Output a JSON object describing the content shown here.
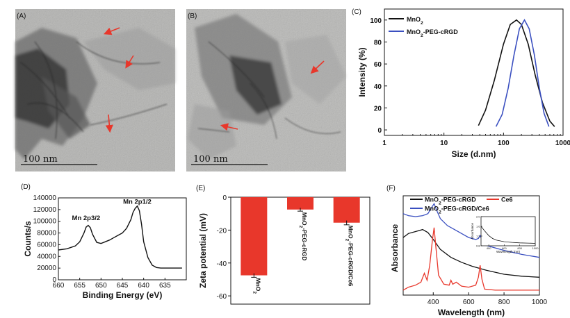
{
  "panels": {
    "A": {
      "label": "(A)",
      "scale_bar": "100 nm"
    },
    "B": {
      "label": "(B)",
      "scale_bar": "100 nm"
    },
    "C": {
      "label": "(C)"
    },
    "D": {
      "label": "(D)"
    },
    "E": {
      "label": "(E)"
    },
    "F": {
      "label": "(F)"
    }
  },
  "colors": {
    "black": "#111111",
    "blue": "#3a4fc0",
    "red": "#e8372b"
  },
  "chart_data": [
    {
      "id": "C",
      "type": "line",
      "xscale": "log",
      "xlabel": "Size (d.nm)",
      "ylabel": "Intensity (%)",
      "xlim": [
        1,
        1000
      ],
      "ylim": [
        -5,
        110
      ],
      "xticks": [
        1,
        10,
        100,
        1000
      ],
      "xticklabels": [
        "1",
        "10",
        "100",
        "1000"
      ],
      "yticks": [
        0,
        20,
        40,
        60,
        80,
        100
      ],
      "yticklabels": [
        "0",
        "20",
        "40",
        "60",
        "80",
        "100"
      ],
      "legend_position": "top-left",
      "series": [
        {
          "name": "MnO2",
          "color": "#111111",
          "x": [
            38,
            50,
            70,
            100,
            130,
            165,
            200,
            260,
            340,
            450,
            600,
            720
          ],
          "y": [
            4,
            18,
            45,
            78,
            96,
            100,
            96,
            78,
            50,
            25,
            8,
            3
          ]
        },
        {
          "name": "MnO2-PEG-cRGD",
          "color": "#3a4fc0",
          "x": [
            75,
            95,
            120,
            150,
            185,
            225,
            270,
            330,
            400,
            480,
            580
          ],
          "y": [
            3,
            14,
            38,
            68,
            92,
            100,
            92,
            68,
            38,
            15,
            3
          ]
        }
      ]
    },
    {
      "id": "D",
      "type": "line",
      "xlabel": "Binding Energy (eV)",
      "ylabel": "Counts/s",
      "xlim": [
        660,
        630
      ],
      "ylim": [
        0,
        140000
      ],
      "xticks": [
        660,
        655,
        650,
        645,
        640,
        635
      ],
      "xticklabels": [
        "660",
        "655",
        "650",
        "645",
        "640",
        "635"
      ],
      "yticks": [
        0,
        20000,
        40000,
        60000,
        80000,
        100000,
        120000,
        140000
      ],
      "yticklabels": [
        "0",
        "20000",
        "40000",
        "60000",
        "80000",
        "100000",
        "120000",
        "140000"
      ],
      "annotations": [
        {
          "text": "Mn 2p3/2",
          "x": 653.5,
          "y": 102000
        },
        {
          "text": "Mn 2p1/2",
          "x": 641.5,
          "y": 130000
        }
      ],
      "series": [
        {
          "name": "",
          "color": "#111111",
          "x": [
            660,
            658,
            656,
            655,
            654,
            653.5,
            653,
            652.5,
            652,
            651,
            650,
            649,
            648,
            647,
            646,
            645,
            644,
            643,
            642.5,
            642,
            641.5,
            641,
            640.5,
            640,
            639,
            638,
            637,
            636,
            634,
            632,
            631
          ],
          "y": [
            51000,
            53000,
            58000,
            65000,
            80000,
            90000,
            93000,
            89000,
            78000,
            64000,
            62000,
            65000,
            68000,
            72000,
            76000,
            80000,
            88000,
            103000,
            115000,
            122000,
            126000,
            118000,
            95000,
            65000,
            38000,
            25000,
            21000,
            20000,
            20000,
            20000,
            20000
          ]
        }
      ]
    },
    {
      "id": "E",
      "type": "bar",
      "ylabel": "Zeta potential (mV)",
      "ylim": [
        -65,
        0
      ],
      "yticks": [
        0,
        -20,
        -40,
        -60
      ],
      "yticklabels": [
        "0",
        "-20",
        "-40",
        "-60"
      ],
      "categories": [
        "MnO2",
        "MnO2-PEG-cRGD",
        "MnO2-PEG-cRGD/Ce6"
      ],
      "values": [
        -47.5,
        -7.5,
        -15.5
      ],
      "errors": [
        1.2,
        1.0,
        1.3
      ],
      "color": "#e8372b"
    },
    {
      "id": "F",
      "type": "line",
      "xlabel": "Wavelength (nm)",
      "ylabel": "Absorbance",
      "xlim": [
        230,
        1000
      ],
      "xticks": [
        400,
        600,
        800,
        1000
      ],
      "xticklabels": [
        "400",
        "600",
        "800",
        "1000"
      ],
      "legend_position": "top",
      "series": [
        {
          "name": "MnO2-PEG-cRGD",
          "color": "#111111",
          "x": [
            230,
            260,
            300,
            340,
            370,
            400,
            440,
            500,
            560,
            620,
            700,
            800,
            900,
            1000
          ],
          "y": [
            0.58,
            0.62,
            0.64,
            0.66,
            0.63,
            0.56,
            0.46,
            0.38,
            0.33,
            0.29,
            0.25,
            0.21,
            0.19,
            0.18
          ]
        },
        {
          "name": "Ce6",
          "color": "#e8372b",
          "x": [
            230,
            260,
            300,
            330,
            350,
            365,
            380,
            395,
            405,
            415,
            430,
            460,
            490,
            500,
            510,
            530,
            560,
            600,
            640,
            655,
            665,
            675,
            690,
            750,
            850,
            1000
          ],
          "y": [
            0.05,
            0.08,
            0.1,
            0.13,
            0.22,
            0.15,
            0.3,
            0.55,
            0.68,
            0.48,
            0.2,
            0.11,
            0.1,
            0.15,
            0.11,
            0.13,
            0.09,
            0.08,
            0.1,
            0.18,
            0.3,
            0.16,
            0.06,
            0.05,
            0.05,
            0.05
          ]
        },
        {
          "name": "MnO2-PEG-cRGD/Ce6",
          "color": "#3a4fc0",
          "x": [
            230,
            260,
            300,
            340,
            370,
            390,
            405,
            420,
            440,
            480,
            520,
            560,
            600,
            640,
            655,
            665,
            680,
            700,
            800,
            900,
            1000
          ],
          "y": [
            0.82,
            0.8,
            0.79,
            0.8,
            0.82,
            0.88,
            0.92,
            0.85,
            0.77,
            0.7,
            0.66,
            0.62,
            0.58,
            0.56,
            0.57,
            0.6,
            0.54,
            0.5,
            0.45,
            0.41,
            0.38
          ]
        }
      ],
      "inset": {
        "type": "line",
        "xlabel": "Wavelength (nm)",
        "ylabel": "Absorbance",
        "xlim": [
          300,
          1000
        ],
        "ylim": [
          0.8,
          2.0
        ],
        "xticks": [
          400,
          600,
          800,
          1000
        ],
        "xticklabels": [
          "400",
          "600",
          "800",
          "1000"
        ],
        "yticks": [
          0.8,
          1.2,
          1.6,
          2.0
        ],
        "yticklabels": [
          "0.8",
          "1.2",
          "1.6",
          "2.0"
        ],
        "series": [
          {
            "name": "",
            "color": "#111111",
            "x": [
              300,
              350,
              400,
              450,
              500,
              600,
              700,
              800,
              900,
              1000
            ],
            "y": [
              1.6,
              1.4,
              1.22,
              1.1,
              1.03,
              0.97,
              0.94,
              0.92,
              0.91,
              0.9
            ]
          }
        ]
      }
    }
  ]
}
